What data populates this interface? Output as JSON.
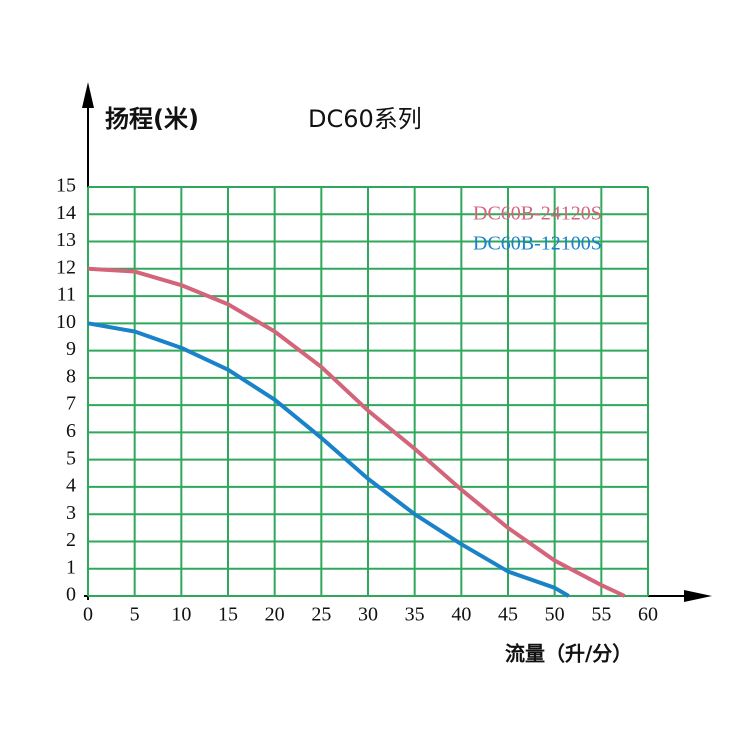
{
  "chart_data": {
    "type": "line",
    "title": "DC60系列",
    "y_label": "扬程(米)",
    "x_label": "流量（升/分）",
    "xlim": [
      0,
      60
    ],
    "ylim": [
      0,
      15
    ],
    "xticks": [
      0,
      5,
      10,
      15,
      20,
      25,
      30,
      35,
      40,
      45,
      50,
      55,
      60
    ],
    "yticks": [
      0,
      1,
      2,
      3,
      4,
      5,
      6,
      7,
      8,
      9,
      10,
      11,
      12,
      13,
      14,
      15
    ],
    "grid": true,
    "grid_color": "#2fa85c",
    "legend": "top-right",
    "series": [
      {
        "name": "DC60B-24120S",
        "color": "#d4647a",
        "x": [
          0,
          5,
          10,
          15,
          20,
          25,
          30,
          35,
          40,
          45,
          50,
          55,
          57.5
        ],
        "values": [
          12,
          11.9,
          11.4,
          10.7,
          9.7,
          8.4,
          6.8,
          5.4,
          3.9,
          2.5,
          1.3,
          0.4,
          0
        ]
      },
      {
        "name": "DC60B-12100S",
        "color": "#1a82c8",
        "x": [
          0,
          5,
          10,
          15,
          20,
          25,
          30,
          35,
          40,
          45,
          50,
          51.5
        ],
        "values": [
          10,
          9.7,
          9.1,
          8.3,
          7.2,
          5.8,
          4.3,
          3.0,
          1.9,
          0.9,
          0.3,
          0
        ]
      }
    ]
  }
}
